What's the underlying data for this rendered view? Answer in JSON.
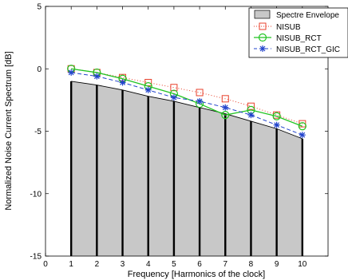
{
  "chart_data": {
    "type": "line",
    "title": "",
    "xlabel": "Frequency [Harmonics of the clock]",
    "ylabel": "Normalized Noise Current Spectrum [dB]",
    "xlim": [
      0,
      11
    ],
    "ylim": [
      -15,
      5
    ],
    "xticks": [
      0,
      1,
      2,
      3,
      4,
      5,
      6,
      7,
      8,
      9,
      10
    ],
    "yticks": [
      5,
      0,
      -5,
      -10,
      -15
    ],
    "grid": false,
    "legend_position": "top-right",
    "envelope": {
      "name": "Spectre Envelope",
      "x": [
        1,
        2,
        3,
        4,
        5,
        6,
        7,
        8,
        9,
        10
      ],
      "y": [
        -1.0,
        -1.3,
        -1.7,
        -2.2,
        -2.6,
        -3.1,
        -3.6,
        -4.2,
        -4.8,
        -5.6
      ],
      "color": "#c8c8c8"
    },
    "series": [
      {
        "name": "NISUB",
        "x": [
          1,
          2,
          3,
          4,
          5,
          6,
          7,
          8,
          9,
          10
        ],
        "y": [
          0.0,
          -0.3,
          -0.7,
          -1.1,
          -1.5,
          -1.9,
          -2.4,
          -3.0,
          -3.7,
          -4.4
        ],
        "color": "#e8412c",
        "marker": "square",
        "line": "dotted"
      },
      {
        "name": "NISUB_RCT",
        "x": [
          1,
          2,
          3,
          4,
          5,
          6,
          7,
          8,
          9,
          10
        ],
        "y": [
          0.0,
          -0.3,
          -0.8,
          -1.4,
          -2.0,
          -2.8,
          -3.7,
          -3.3,
          -3.8,
          -4.6
        ],
        "color": "#22c422",
        "marker": "circle",
        "line": "solid"
      },
      {
        "name": "NISUB_RCT_GIC",
        "x": [
          1,
          2,
          3,
          4,
          5,
          6,
          7,
          8,
          9,
          10
        ],
        "y": [
          -0.3,
          -0.6,
          -1.1,
          -1.7,
          -2.3,
          -2.6,
          -3.1,
          -3.7,
          -4.5,
          -5.3
        ],
        "color": "#2244cc",
        "marker": "star",
        "line": "dashed"
      }
    ]
  }
}
